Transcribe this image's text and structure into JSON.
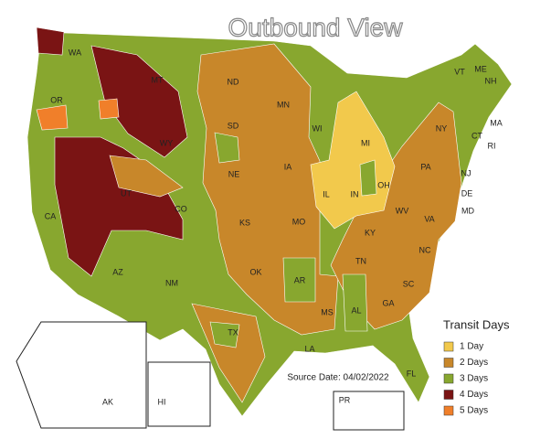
{
  "title": "Outbound View",
  "states": [
    "WA",
    "OR",
    "CA",
    "MT",
    "WY",
    "UT",
    "CO",
    "AZ",
    "NM",
    "ND",
    "SD",
    "NE",
    "KS",
    "OK",
    "TX",
    "MN",
    "IA",
    "MO",
    "AR",
    "LA",
    "WI",
    "MI",
    "IL",
    "IN",
    "OH",
    "KY",
    "TN",
    "MS",
    "AL",
    "GA",
    "FL",
    "SC",
    "NC",
    "VA",
    "WV",
    "PA",
    "NY",
    "VT",
    "NH",
    "ME",
    "MA",
    "RI",
    "CT",
    "NJ",
    "DE",
    "MD"
  ],
  "insets": [
    "AK",
    "HI",
    "PR"
  ],
  "source": "Source Date: 04/02/2022",
  "legend": {
    "title": "Transit Days",
    "items": [
      {
        "label": "1 Day",
        "color": "#f2c94c"
      },
      {
        "label": "2 Days",
        "color": "#c8872a"
      },
      {
        "label": "3 Days",
        "color": "#88a72f"
      },
      {
        "label": "4 Days",
        "color": "#7a1414"
      },
      {
        "label": "5 Days",
        "color": "#f07f2a"
      }
    ]
  }
}
